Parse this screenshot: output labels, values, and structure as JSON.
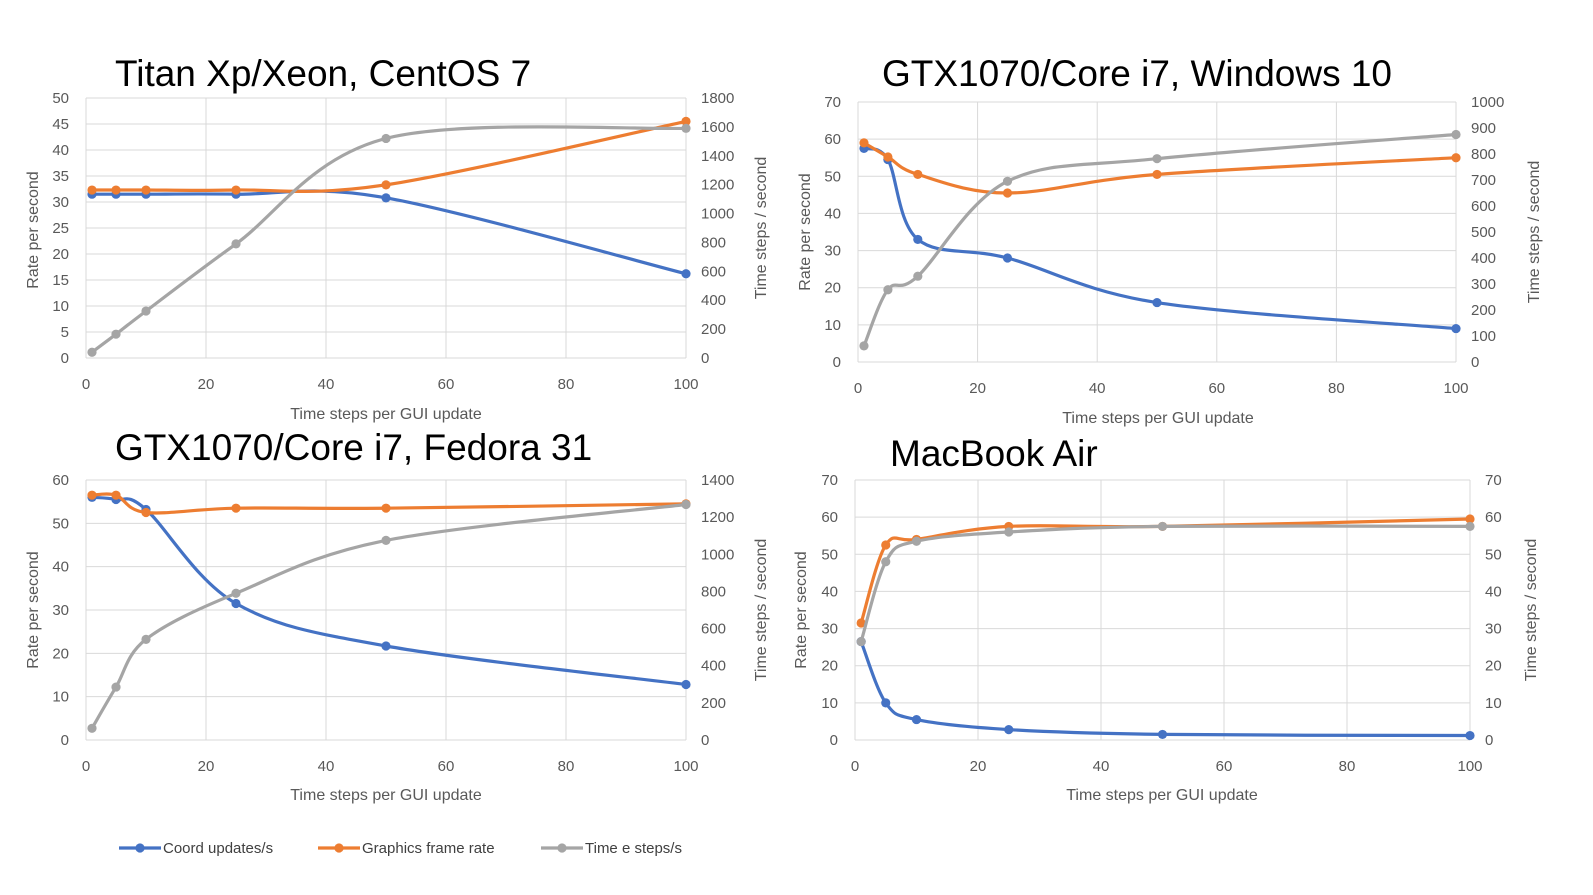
{
  "chart_data": [
    {
      "type": "line",
      "title": "Titan Xp/Xeon, CentOS 7",
      "xlabel": "Time steps per GUI update",
      "ylabel": "Rate per second",
      "y2label": "Time steps / second",
      "xlim": [
        0,
        100
      ],
      "ylim": [
        0,
        50
      ],
      "y2lim": [
        0,
        1800
      ],
      "xticks": [
        "0",
        "20",
        "40",
        "60",
        "80",
        "100"
      ],
      "yticks": [
        "0",
        "5",
        "10",
        "15",
        "20",
        "25",
        "30",
        "35",
        "40",
        "45",
        "50"
      ],
      "y2ticks": [
        "0",
        "200",
        "400",
        "600",
        "800",
        "1000",
        "1200",
        "1400",
        "1600",
        "1800"
      ],
      "grid": true,
      "x": [
        1,
        5,
        10,
        25,
        50,
        100
      ],
      "series": [
        {
          "name": "Coord updates/s",
          "axis": "left",
          "values": [
            31.5,
            31.5,
            31.5,
            31.5,
            30.8,
            16.2
          ]
        },
        {
          "name": "Graphics frame rate",
          "axis": "left",
          "values": [
            32.3,
            32.3,
            32.3,
            32.3,
            33.3,
            45.5
          ]
        },
        {
          "name": "Time steps/s",
          "axis": "right",
          "values": [
            40,
            165,
            325,
            790,
            1520,
            1590
          ]
        }
      ]
    },
    {
      "type": "line",
      "title": "GTX1070/Core i7, Windows 10",
      "xlabel": "Time steps per GUI update",
      "ylabel": "Rate per second",
      "y2label": "Time steps / second",
      "xlim": [
        0,
        100
      ],
      "ylim": [
        0,
        70
      ],
      "y2lim": [
        0,
        1000
      ],
      "xticks": [
        "0",
        "20",
        "40",
        "60",
        "80",
        "100"
      ],
      "yticks": [
        "0",
        "10",
        "20",
        "30",
        "40",
        "50",
        "60",
        "70"
      ],
      "y2ticks": [
        "0",
        "100",
        "200",
        "300",
        "400",
        "500",
        "600",
        "700",
        "800",
        "900",
        "1000"
      ],
      "grid": true,
      "x": [
        1,
        5,
        10,
        25,
        50,
        100
      ],
      "series": [
        {
          "name": "Coord updates/s",
          "axis": "left",
          "values": [
            57.5,
            54.5,
            33,
            28,
            16,
            9
          ]
        },
        {
          "name": "Graphics frame rate",
          "axis": "left",
          "values": [
            59,
            55.2,
            50.5,
            45.5,
            50.5,
            55
          ]
        },
        {
          "name": "Time steps/s",
          "axis": "right",
          "values": [
            62,
            278,
            330,
            695,
            782,
            875
          ]
        }
      ]
    },
    {
      "type": "line",
      "title": "GTX1070/Core i7, Fedora 31",
      "xlabel": "Time steps per GUI update",
      "ylabel": "Rate per second",
      "y2label": "Time steps / second",
      "xlim": [
        0,
        100
      ],
      "ylim": [
        0,
        60
      ],
      "y2lim": [
        0,
        1400
      ],
      "xticks": [
        "0",
        "20",
        "40",
        "60",
        "80",
        "100"
      ],
      "yticks": [
        "0",
        "10",
        "20",
        "30",
        "40",
        "50",
        "60"
      ],
      "y2ticks": [
        "0",
        "200",
        "400",
        "600",
        "800",
        "1000",
        "1200",
        "1400"
      ],
      "grid": true,
      "x": [
        1,
        5,
        10,
        25,
        50,
        100
      ],
      "series": [
        {
          "name": "Coord updates/s",
          "axis": "left",
          "values": [
            56,
            55.5,
            53.2,
            31.5,
            21.7,
            12.8
          ]
        },
        {
          "name": "Graphics frame rate",
          "axis": "left",
          "values": [
            56.5,
            56.5,
            52.5,
            53.5,
            53.5,
            54.5
          ]
        },
        {
          "name": "Time steps/s",
          "axis": "right",
          "values": [
            63,
            285,
            542,
            790,
            1075,
            1268
          ]
        }
      ]
    },
    {
      "type": "line",
      "title": "MacBook Air",
      "xlabel": "Time steps per GUI update",
      "ylabel": "Rate per second",
      "y2label": "Time steps / second",
      "xlim": [
        0,
        100
      ],
      "ylim": [
        0,
        70
      ],
      "y2lim": [
        0,
        70
      ],
      "xticks": [
        "0",
        "20",
        "40",
        "60",
        "80",
        "100"
      ],
      "yticks": [
        "0",
        "10",
        "20",
        "30",
        "40",
        "50",
        "60",
        "70"
      ],
      "y2ticks": [
        "0",
        "10",
        "20",
        "30",
        "40",
        "50",
        "60",
        "70"
      ],
      "grid": true,
      "x": [
        1,
        5,
        10,
        25,
        50,
        100
      ],
      "series": [
        {
          "name": "Coord updates/s",
          "axis": "left",
          "values": [
            26.5,
            10,
            5.5,
            2.8,
            1.5,
            1.2
          ]
        },
        {
          "name": "Graphics frame rate",
          "axis": "left",
          "values": [
            31.5,
            52.5,
            54,
            57.5,
            57.5,
            59.5
          ]
        },
        {
          "name": "Time steps/s",
          "axis": "right",
          "values": [
            26.5,
            48,
            53.5,
            56,
            57.5,
            57.5
          ]
        }
      ]
    }
  ],
  "legend": {
    "placement": "bottom-left",
    "items": [
      {
        "name": "Coord updates/s",
        "color": "#4472C4"
      },
      {
        "name": "Graphics frame rate",
        "color": "#ED7D31"
      },
      {
        "name": "Time e steps/s",
        "color": "#A5A5A5"
      }
    ]
  },
  "colors": {
    "coord": "#4472C4",
    "frame": "#ED7D31",
    "steps": "#A5A5A5",
    "grid": "#D9D9D9"
  }
}
